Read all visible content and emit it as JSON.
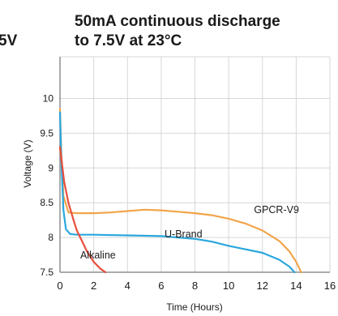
{
  "colors": {
    "background": "#ffffff",
    "grid": "#d7d7d7",
    "axis": "#8f8f8f",
    "text": "#1a1a1a",
    "gpcr": "#f2a54a",
    "ubrand": "#2aa7dd",
    "alkaline": "#e84e3c"
  },
  "chart_data": {
    "type": "line",
    "title_lines": [
      "50mA continuous discharge",
      "to 7.5V at 23°C"
    ],
    "partial_title": "5V",
    "xlabel": "Time (Hours)",
    "ylabel": "Voltage (V)",
    "xlim": [
      0,
      16
    ],
    "ylim": [
      7.5,
      10.6
    ],
    "xticks": [
      0,
      2,
      4,
      6,
      8,
      10,
      12,
      14,
      16
    ],
    "yticks": [
      7.5,
      8,
      8.5,
      9,
      9.5,
      10
    ],
    "ytick_labels": [
      "7.5",
      "8",
      "8.5",
      "9",
      "9.5",
      "10"
    ],
    "grid": true,
    "series": [
      {
        "name": "GPCR-V9",
        "label_at": [
          11.5,
          8.35
        ],
        "points": [
          [
            0,
            9.85
          ],
          [
            0.08,
            9.2
          ],
          [
            0.2,
            8.6
          ],
          [
            0.5,
            8.36
          ],
          [
            1,
            8.35
          ],
          [
            2,
            8.35
          ],
          [
            3,
            8.36
          ],
          [
            4,
            8.38
          ],
          [
            5,
            8.4
          ],
          [
            6,
            8.39
          ],
          [
            7,
            8.37
          ],
          [
            8,
            8.35
          ],
          [
            9,
            8.32
          ],
          [
            10,
            8.27
          ],
          [
            11,
            8.2
          ],
          [
            12,
            8.1
          ],
          [
            13,
            7.95
          ],
          [
            13.6,
            7.8
          ],
          [
            14,
            7.65
          ],
          [
            14.2,
            7.55
          ],
          [
            14.3,
            7.5
          ]
        ]
      },
      {
        "name": "U-Brand",
        "label_at": [
          6.2,
          8.0
        ],
        "points": [
          [
            0,
            9.8
          ],
          [
            0.08,
            9.1
          ],
          [
            0.2,
            8.4
          ],
          [
            0.35,
            8.12
          ],
          [
            0.6,
            8.05
          ],
          [
            1,
            8.04
          ],
          [
            2,
            8.04
          ],
          [
            4,
            8.03
          ],
          [
            6,
            8.02
          ],
          [
            7,
            8.0
          ],
          [
            8,
            7.98
          ],
          [
            9,
            7.94
          ],
          [
            10,
            7.88
          ],
          [
            11,
            7.83
          ],
          [
            12,
            7.78
          ],
          [
            13,
            7.68
          ],
          [
            13.6,
            7.58
          ],
          [
            13.9,
            7.5
          ]
        ]
      },
      {
        "name": "Alkaline",
        "label_at": [
          1.2,
          7.7
        ],
        "points": [
          [
            0,
            9.3
          ],
          [
            0.1,
            9.1
          ],
          [
            0.25,
            8.8
          ],
          [
            0.5,
            8.5
          ],
          [
            0.8,
            8.25
          ],
          [
            1,
            8.1
          ],
          [
            1.3,
            7.95
          ],
          [
            1.6,
            7.8
          ],
          [
            2,
            7.65
          ],
          [
            2.4,
            7.55
          ],
          [
            2.7,
            7.5
          ]
        ]
      }
    ]
  }
}
